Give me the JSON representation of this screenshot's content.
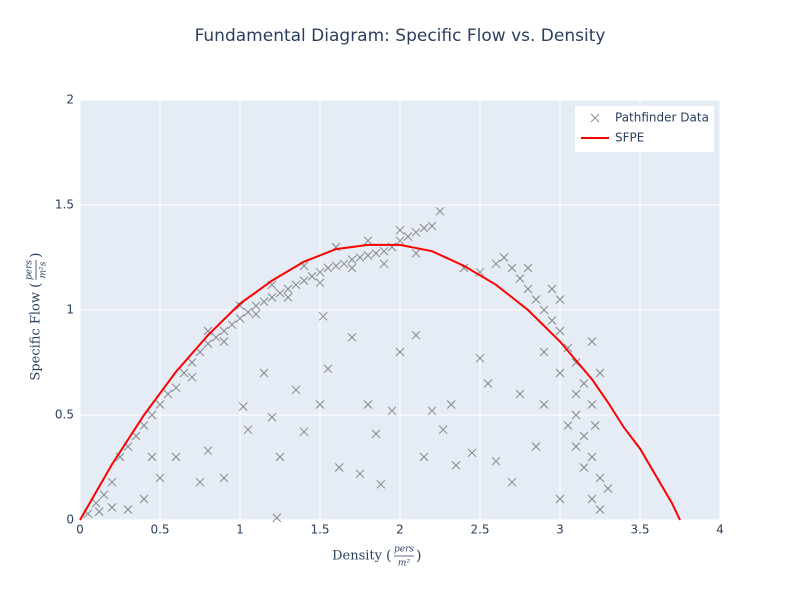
{
  "chart_data": {
    "type": "scatter",
    "title": "Fundamental Diagram: Specific Flow vs. Density",
    "x_label": {
      "text": "Density",
      "numerator": "pers",
      "denominator": "m²"
    },
    "y_label": {
      "text": "Specific Flow",
      "numerator": "pers",
      "denominator": "m²s"
    },
    "xlim": [
      0,
      4
    ],
    "xticks": [
      0,
      0.5,
      1,
      1.5,
      2,
      2.5,
      3,
      3.5,
      4
    ],
    "ylim": [
      0,
      2
    ],
    "yticks": [
      0,
      0.5,
      1,
      1.5,
      2
    ],
    "grid": true,
    "legend": "top-right",
    "series": [
      {
        "name": "Pathfinder Data",
        "type": "scatter",
        "color": "#444444",
        "x": [
          0.05,
          0.1,
          0.15,
          0.2,
          0.12,
          0.25,
          0.3,
          0.35,
          0.4,
          0.45,
          0.5,
          0.55,
          0.6,
          0.65,
          0.7,
          0.75,
          0.8,
          0.85,
          0.9,
          0.95,
          1.0,
          1.05,
          1.1,
          1.15,
          1.2,
          1.25,
          1.3,
          1.35,
          1.4,
          1.45,
          1.5,
          1.55,
          1.6,
          1.65,
          1.7,
          1.75,
          1.8,
          1.85,
          1.9,
          1.95,
          2.0,
          2.05,
          2.1,
          2.15,
          2.2,
          2.25,
          0.7,
          0.9,
          1.1,
          1.3,
          1.5,
          1.7,
          1.9,
          2.1,
          1.6,
          1.8,
          2.0,
          1.4,
          1.2,
          1.0,
          0.8,
          2.4,
          2.5,
          2.6,
          2.65,
          2.7,
          2.75,
          2.8,
          2.85,
          2.9,
          2.95,
          3.0,
          3.05,
          3.1,
          3.15,
          3.2,
          3.1,
          3.15,
          3.2,
          3.25,
          3.2,
          3.25,
          3.3,
          3.1,
          3.0,
          2.9,
          3.05,
          3.2,
          3.25,
          3.1,
          3.15,
          3.22,
          2.95,
          3.0,
          2.8,
          0.3,
          0.5,
          0.6,
          0.8,
          0.75,
          1.02,
          1.05,
          1.15,
          1.2,
          1.25,
          1.23,
          1.35,
          1.4,
          1.5,
          1.52,
          1.55,
          1.62,
          1.7,
          1.75,
          1.8,
          1.85,
          1.88,
          1.95,
          2.0,
          2.1,
          2.15,
          2.2,
          2.27,
          2.32,
          2.35,
          2.45,
          2.5,
          2.55,
          2.6,
          2.7,
          2.75,
          2.85,
          2.9,
          3.0,
          0.2,
          0.4,
          0.45,
          0.9
        ],
        "y": [
          0.03,
          0.08,
          0.12,
          0.18,
          0.04,
          0.3,
          0.35,
          0.4,
          0.45,
          0.5,
          0.55,
          0.6,
          0.63,
          0.7,
          0.75,
          0.8,
          0.84,
          0.87,
          0.9,
          0.93,
          0.96,
          0.99,
          1.02,
          1.04,
          1.06,
          1.08,
          1.1,
          1.12,
          1.14,
          1.16,
          1.18,
          1.2,
          1.21,
          1.22,
          1.24,
          1.25,
          1.26,
          1.27,
          1.28,
          1.3,
          1.33,
          1.35,
          1.37,
          1.39,
          1.4,
          1.47,
          0.68,
          0.85,
          0.98,
          1.06,
          1.13,
          1.2,
          1.22,
          1.27,
          1.3,
          1.33,
          1.38,
          1.21,
          1.12,
          1.02,
          0.9,
          1.2,
          1.18,
          1.22,
          1.25,
          1.2,
          1.15,
          1.1,
          1.05,
          1.0,
          0.95,
          0.9,
          0.82,
          0.75,
          0.65,
          0.55,
          0.5,
          0.4,
          0.3,
          0.2,
          0.1,
          0.05,
          0.15,
          0.6,
          0.7,
          0.8,
          0.45,
          0.85,
          0.7,
          0.35,
          0.25,
          0.45,
          1.1,
          1.05,
          1.2,
          0.05,
          0.2,
          0.3,
          0.33,
          0.18,
          0.54,
          0.43,
          0.7,
          0.49,
          0.3,
          0.01,
          0.62,
          0.42,
          0.55,
          0.97,
          0.72,
          0.25,
          0.87,
          0.22,
          0.55,
          0.41,
          0.17,
          0.52,
          0.8,
          0.88,
          0.3,
          0.52,
          0.43,
          0.55,
          0.26,
          0.32,
          0.77,
          0.65,
          0.28,
          0.18,
          0.6,
          0.35,
          0.55,
          0.1,
          0.06,
          0.1,
          0.3,
          0.2
        ]
      },
      {
        "name": "SFPE",
        "type": "line",
        "color": "#ff0000",
        "x": [
          0,
          0.2,
          0.4,
          0.6,
          0.8,
          1.0,
          1.2,
          1.4,
          1.6,
          1.8,
          2.0,
          2.2,
          2.4,
          2.6,
          2.8,
          3.0,
          3.2,
          3.3,
          3.4,
          3.5,
          3.6,
          3.7,
          3.75
        ],
        "y": [
          0,
          0.265,
          0.5,
          0.706,
          0.88,
          1.03,
          1.14,
          1.23,
          1.29,
          1.31,
          1.31,
          1.28,
          1.21,
          1.12,
          1.0,
          0.85,
          0.67,
          0.56,
          0.44,
          0.34,
          0.21,
          0.08,
          0
        ]
      }
    ]
  }
}
